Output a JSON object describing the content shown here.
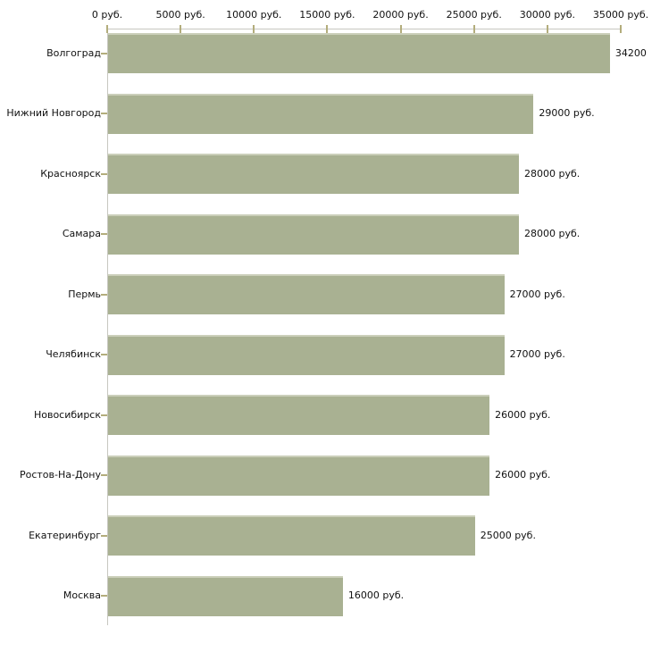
{
  "chart_data": {
    "type": "bar",
    "orientation": "horizontal",
    "title": "",
    "xlabel": "",
    "ylabel": "",
    "grid": false,
    "legend": false,
    "categories": [
      "Волгоград",
      "Нижний Новгород",
      "Красноярск",
      "Самара",
      "Пермь",
      "Челябинск",
      "Новосибирск",
      "Ростов-На-Дону",
      "Екатеринбург",
      "Москва"
    ],
    "values": [
      34200,
      29000,
      28000,
      28000,
      27000,
      27000,
      26000,
      26000,
      25000,
      16000
    ],
    "value_labels": [
      "34200",
      "29000 руб.",
      "28000 руб.",
      "28000 руб.",
      "27000 руб.",
      "27000 руб.",
      "26000 руб.",
      "26000 руб.",
      "25000 руб.",
      "16000 руб."
    ],
    "x_axis": {
      "position": "top",
      "min": 0,
      "max": 35000,
      "ticks": [
        0,
        5000,
        10000,
        15000,
        20000,
        25000,
        30000,
        35000
      ],
      "tick_labels": [
        "0 руб.",
        "5000 руб.",
        "10000 руб.",
        "15000 руб.",
        "20000 руб.",
        "25000 руб.",
        "30000 руб.",
        "35000 руб."
      ]
    },
    "colors": {
      "bar": "#a9b192",
      "bar_top_highlight": "#cbcfba",
      "axis_line": "#c7c7c0",
      "tick_mark": "#b3ad7c",
      "text": "#111111",
      "background": "#ffffff"
    }
  }
}
